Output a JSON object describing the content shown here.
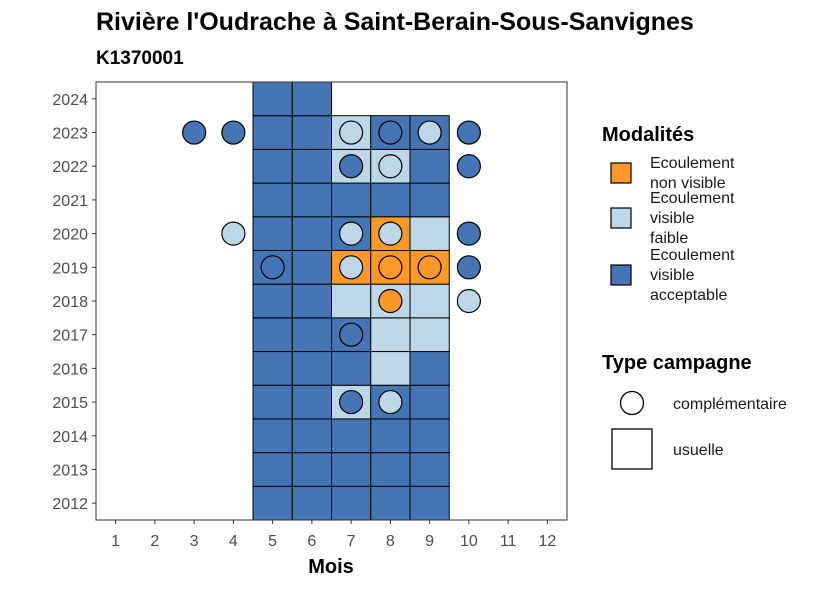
{
  "chart_data": {
    "type": "heatmap",
    "title": "Rivière l'Oudrache à Saint-Berain-Sous-Sanvignes",
    "subtitle": "K1370001",
    "xlabel": "Mois",
    "ylabel": "",
    "x_ticks": [
      1,
      2,
      3,
      4,
      5,
      6,
      7,
      8,
      9,
      10,
      11,
      12
    ],
    "y_ticks": [
      2012,
      2013,
      2014,
      2015,
      2016,
      2017,
      2018,
      2019,
      2020,
      2021,
      2022,
      2023,
      2024
    ],
    "xlim": [
      0.5,
      12.5
    ],
    "ylim": [
      2011.5,
      2024.5
    ],
    "grid": false,
    "legend_position": "right",
    "modalites": [
      {
        "key": "non_visible",
        "label_lines": [
          "Ecoulement",
          "non visible"
        ],
        "color": "#FE9929"
      },
      {
        "key": "faible",
        "label_lines": [
          "Ecoulement",
          "visible",
          "faible"
        ],
        "color": "#BDD7E7"
      },
      {
        "key": "acceptable",
        "label_lines": [
          "Ecoulement",
          "visible",
          "acceptable"
        ],
        "color": "#4575B4"
      }
    ],
    "legend_modalites_title": "Modalités",
    "legend_type_title": "Type campagne",
    "legend_type_labels": {
      "complementaire": "complémentaire",
      "usuelle": "usuelle"
    },
    "usuelle": [
      {
        "year": 2012,
        "month": 5,
        "m": "acceptable"
      },
      {
        "year": 2012,
        "month": 6,
        "m": "acceptable"
      },
      {
        "year": 2012,
        "month": 7,
        "m": "acceptable"
      },
      {
        "year": 2012,
        "month": 8,
        "m": "acceptable"
      },
      {
        "year": 2012,
        "month": 9,
        "m": "acceptable"
      },
      {
        "year": 2013,
        "month": 5,
        "m": "acceptable"
      },
      {
        "year": 2013,
        "month": 6,
        "m": "acceptable"
      },
      {
        "year": 2013,
        "month": 7,
        "m": "acceptable"
      },
      {
        "year": 2013,
        "month": 8,
        "m": "acceptable"
      },
      {
        "year": 2013,
        "month": 9,
        "m": "acceptable"
      },
      {
        "year": 2014,
        "month": 5,
        "m": "acceptable"
      },
      {
        "year": 2014,
        "month": 6,
        "m": "acceptable"
      },
      {
        "year": 2014,
        "month": 7,
        "m": "acceptable"
      },
      {
        "year": 2014,
        "month": 8,
        "m": "acceptable"
      },
      {
        "year": 2014,
        "month": 9,
        "m": "acceptable"
      },
      {
        "year": 2015,
        "month": 5,
        "m": "acceptable"
      },
      {
        "year": 2015,
        "month": 6,
        "m": "acceptable"
      },
      {
        "year": 2015,
        "month": 7,
        "m": "faible"
      },
      {
        "year": 2015,
        "month": 8,
        "m": "acceptable"
      },
      {
        "year": 2015,
        "month": 9,
        "m": "acceptable"
      },
      {
        "year": 2016,
        "month": 5,
        "m": "acceptable"
      },
      {
        "year": 2016,
        "month": 6,
        "m": "acceptable"
      },
      {
        "year": 2016,
        "month": 7,
        "m": "acceptable"
      },
      {
        "year": 2016,
        "month": 8,
        "m": "faible"
      },
      {
        "year": 2016,
        "month": 9,
        "m": "acceptable"
      },
      {
        "year": 2017,
        "month": 5,
        "m": "acceptable"
      },
      {
        "year": 2017,
        "month": 6,
        "m": "acceptable"
      },
      {
        "year": 2017,
        "month": 7,
        "m": "acceptable"
      },
      {
        "year": 2017,
        "month": 8,
        "m": "faible"
      },
      {
        "year": 2017,
        "month": 9,
        "m": "faible"
      },
      {
        "year": 2018,
        "month": 5,
        "m": "acceptable"
      },
      {
        "year": 2018,
        "month": 6,
        "m": "acceptable"
      },
      {
        "year": 2018,
        "month": 7,
        "m": "faible"
      },
      {
        "year": 2018,
        "month": 8,
        "m": "faible"
      },
      {
        "year": 2018,
        "month": 9,
        "m": "faible"
      },
      {
        "year": 2019,
        "month": 5,
        "m": "acceptable"
      },
      {
        "year": 2019,
        "month": 6,
        "m": "acceptable"
      },
      {
        "year": 2019,
        "month": 7,
        "m": "non_visible"
      },
      {
        "year": 2019,
        "month": 8,
        "m": "non_visible"
      },
      {
        "year": 2019,
        "month": 9,
        "m": "non_visible"
      },
      {
        "year": 2020,
        "month": 5,
        "m": "acceptable"
      },
      {
        "year": 2020,
        "month": 6,
        "m": "acceptable"
      },
      {
        "year": 2020,
        "month": 7,
        "m": "acceptable"
      },
      {
        "year": 2020,
        "month": 8,
        "m": "non_visible"
      },
      {
        "year": 2020,
        "month": 9,
        "m": "faible"
      },
      {
        "year": 2021,
        "month": 5,
        "m": "acceptable"
      },
      {
        "year": 2021,
        "month": 6,
        "m": "acceptable"
      },
      {
        "year": 2021,
        "month": 7,
        "m": "acceptable"
      },
      {
        "year": 2021,
        "month": 8,
        "m": "acceptable"
      },
      {
        "year": 2021,
        "month": 9,
        "m": "acceptable"
      },
      {
        "year": 2022,
        "month": 5,
        "m": "acceptable"
      },
      {
        "year": 2022,
        "month": 6,
        "m": "acceptable"
      },
      {
        "year": 2022,
        "month": 7,
        "m": "faible"
      },
      {
        "year": 2022,
        "month": 8,
        "m": "faible"
      },
      {
        "year": 2022,
        "month": 9,
        "m": "acceptable"
      },
      {
        "year": 2023,
        "month": 5,
        "m": "acceptable"
      },
      {
        "year": 2023,
        "month": 6,
        "m": "acceptable"
      },
      {
        "year": 2023,
        "month": 7,
        "m": "faible"
      },
      {
        "year": 2023,
        "month": 8,
        "m": "acceptable"
      },
      {
        "year": 2023,
        "month": 9,
        "m": "acceptable"
      },
      {
        "year": 2024,
        "month": 5,
        "m": "acceptable"
      },
      {
        "year": 2024,
        "month": 6,
        "m": "acceptable"
      }
    ],
    "complementaire": [
      {
        "year": 2015,
        "month": 7,
        "m": "acceptable"
      },
      {
        "year": 2015,
        "month": 8,
        "m": "faible"
      },
      {
        "year": 2017,
        "month": 7,
        "m": "acceptable"
      },
      {
        "year": 2018,
        "month": 8,
        "m": "non_visible"
      },
      {
        "year": 2018,
        "month": 10,
        "m": "faible"
      },
      {
        "year": 2019,
        "month": 5,
        "m": "acceptable"
      },
      {
        "year": 2019,
        "month": 7,
        "m": "faible"
      },
      {
        "year": 2019,
        "month": 8,
        "m": "non_visible"
      },
      {
        "year": 2019,
        "month": 9,
        "m": "non_visible"
      },
      {
        "year": 2019,
        "month": 10,
        "m": "acceptable"
      },
      {
        "year": 2020,
        "month": 4,
        "m": "faible"
      },
      {
        "year": 2020,
        "month": 7,
        "m": "faible"
      },
      {
        "year": 2020,
        "month": 8,
        "m": "faible"
      },
      {
        "year": 2020,
        "month": 10,
        "m": "acceptable"
      },
      {
        "year": 2022,
        "month": 7,
        "m": "acceptable"
      },
      {
        "year": 2022,
        "month": 8,
        "m": "faible"
      },
      {
        "year": 2022,
        "month": 10,
        "m": "acceptable"
      },
      {
        "year": 2023,
        "month": 3,
        "m": "acceptable"
      },
      {
        "year": 2023,
        "month": 4,
        "m": "acceptable"
      },
      {
        "year": 2023,
        "month": 7,
        "m": "faible"
      },
      {
        "year": 2023,
        "month": 8,
        "m": "acceptable"
      },
      {
        "year": 2023,
        "month": 9,
        "m": "faible"
      },
      {
        "year": 2023,
        "month": 10,
        "m": "acceptable"
      }
    ]
  }
}
